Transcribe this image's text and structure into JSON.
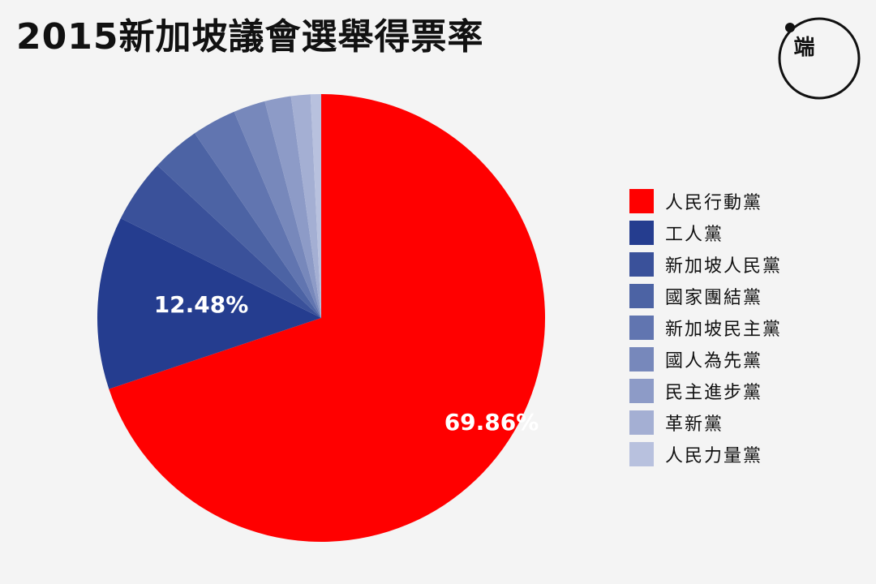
{
  "title": "2015新加坡議會選舉得票率",
  "logo": {
    "text": "端"
  },
  "colors": {
    "background": "#f4f4f4",
    "accent": "#ff0000"
  },
  "chart_data": {
    "type": "pie",
    "title": "2015新加坡議會選舉得票率",
    "legend_placement": "right",
    "slices": [
      {
        "name": "人民行動黨",
        "value": 69.86,
        "color": "#ff0000",
        "label": "69.86%"
      },
      {
        "name": "工人黨",
        "value": 12.48,
        "color": "#253d8f",
        "label": "12.48%"
      },
      {
        "name": "新加坡人民黨",
        "value": 4.6,
        "color": "#3a519a",
        "label": ""
      },
      {
        "name": "國家團結黨",
        "value": 3.5,
        "color": "#4c63a4",
        "label": ""
      },
      {
        "name": "新加坡民主黨",
        "value": 3.2,
        "color": "#6175b0",
        "label": ""
      },
      {
        "name": "國人為先黨",
        "value": 2.3,
        "color": "#7788bb",
        "label": ""
      },
      {
        "name": "民主進步黨",
        "value": 1.9,
        "color": "#8d9bc7",
        "label": ""
      },
      {
        "name": "革新黨",
        "value": 1.4,
        "color": "#a4afd3",
        "label": ""
      },
      {
        "name": "人民力量黨",
        "value": 0.76,
        "color": "#b8c1de",
        "label": ""
      }
    ]
  }
}
